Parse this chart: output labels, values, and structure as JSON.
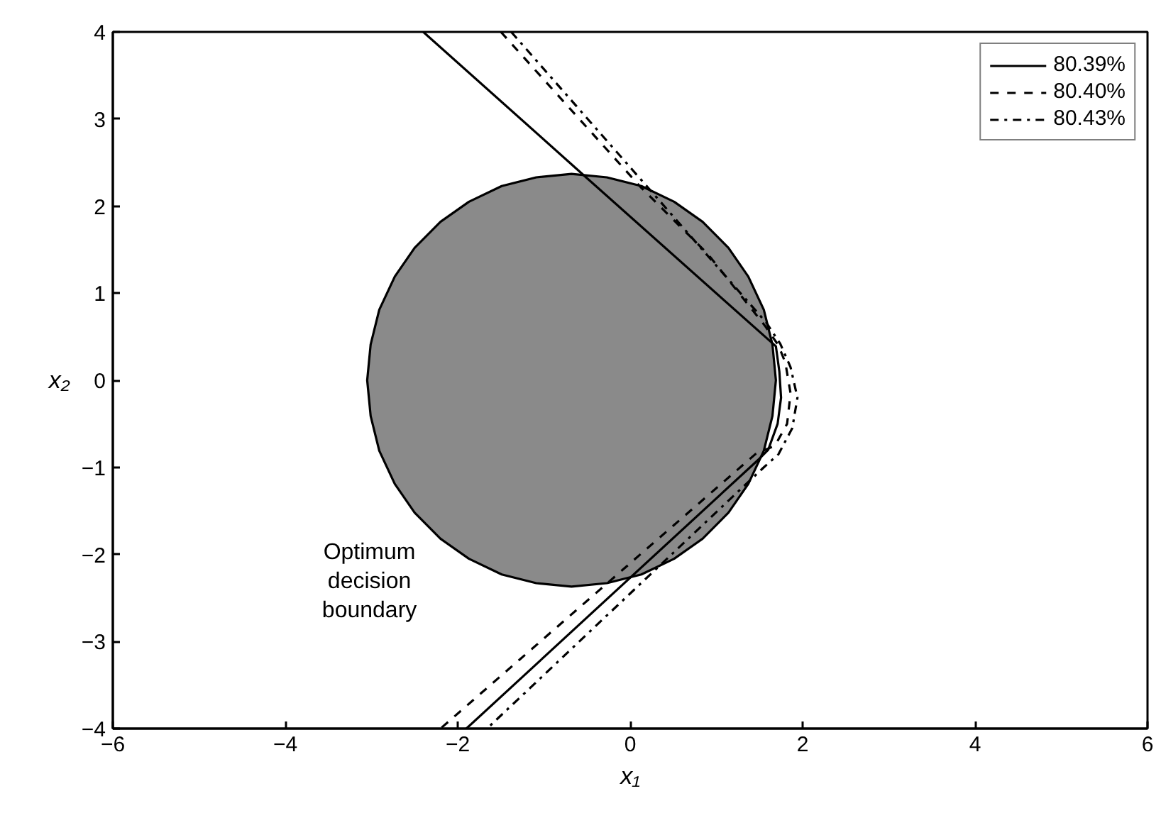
{
  "chart_data": {
    "type": "line",
    "xlabel": "x₁",
    "ylabel": "x₂",
    "xlim": [
      -6,
      6
    ],
    "ylim": [
      -4,
      4
    ],
    "xticks": [
      {
        "value": -6,
        "label": "−6"
      },
      {
        "value": -4,
        "label": "−4"
      },
      {
        "value": -2,
        "label": "−2"
      },
      0,
      2,
      4,
      6
    ],
    "yticks": [
      {
        "value": -4,
        "label": "−4"
      },
      {
        "value": -3,
        "label": "−3"
      },
      {
        "value": -2,
        "label": "−2"
      },
      {
        "value": -1,
        "label": "−1"
      },
      0,
      1,
      2,
      3,
      4
    ],
    "legend": "top right",
    "annotations": [
      "Optimum\ndecision\nboundary"
    ],
    "series": [
      {
        "type": "area",
        "color": "#8a8a8a",
        "x": [
          1.69,
          1.65,
          1.55,
          1.37,
          1.14,
          0.84,
          0.51,
          0.13,
          -0.27,
          -0.68,
          -1.09,
          -1.49,
          -1.87,
          -2.2,
          -2.5,
          -2.73,
          -2.91,
          -3.01,
          -3.05,
          -3.01,
          -2.91,
          -2.73,
          -2.5,
          -2.2,
          -1.87,
          -1.49,
          -1.09,
          -0.68,
          -0.27,
          0.13,
          0.51,
          0.84,
          1.14,
          1.37,
          1.55,
          1.65
        ],
        "values": [
          0,
          0.41,
          0.81,
          1.19,
          1.52,
          1.82,
          2.05,
          2.23,
          2.33,
          2.37,
          2.33,
          2.23,
          2.05,
          1.82,
          1.52,
          1.19,
          0.81,
          0.41,
          0,
          -0.41,
          -0.81,
          -1.19,
          -1.52,
          -1.82,
          -2.05,
          -2.23,
          -2.33,
          -2.37,
          -2.33,
          -2.23,
          -2.05,
          -1.82,
          -1.52,
          -1.19,
          -0.81,
          -0.41
        ]
      },
      {
        "name": "80.39%",
        "color": "#000000",
        "line_style": "solid",
        "x": [
          -2.4,
          -0.5,
          1.69,
          1.73,
          1.75,
          1.71,
          1.6,
          1.5,
          -1.9
        ],
        "values": [
          4,
          2.32,
          0.39,
          0.1,
          -0.2,
          -0.5,
          -0.8,
          -0.9,
          -4
        ]
      },
      {
        "name": "80.40%",
        "color": "#000000",
        "line_style": "dashed",
        "x": [
          -1.5,
          0.12,
          0.9,
          1.56,
          1.72,
          1.8,
          1.86,
          1.82,
          1.68,
          1.45,
          -2.2
        ],
        "values": [
          4,
          2.22,
          1.45,
          0.63,
          0.4,
          0.2,
          -0.15,
          -0.5,
          -0.75,
          -0.85,
          -4
        ]
      },
      {
        "name": "80.43%",
        "color": "#000000",
        "line_style": "dashdot",
        "x": [
          -1.38,
          0.2,
          1.58,
          1.74,
          1.86,
          1.94,
          1.88,
          1.72,
          1.55,
          -1.66
        ],
        "values": [
          4,
          2.22,
          0.66,
          0.42,
          0.15,
          -0.2,
          -0.55,
          -0.85,
          -1.0,
          -4
        ]
      }
    ]
  }
}
